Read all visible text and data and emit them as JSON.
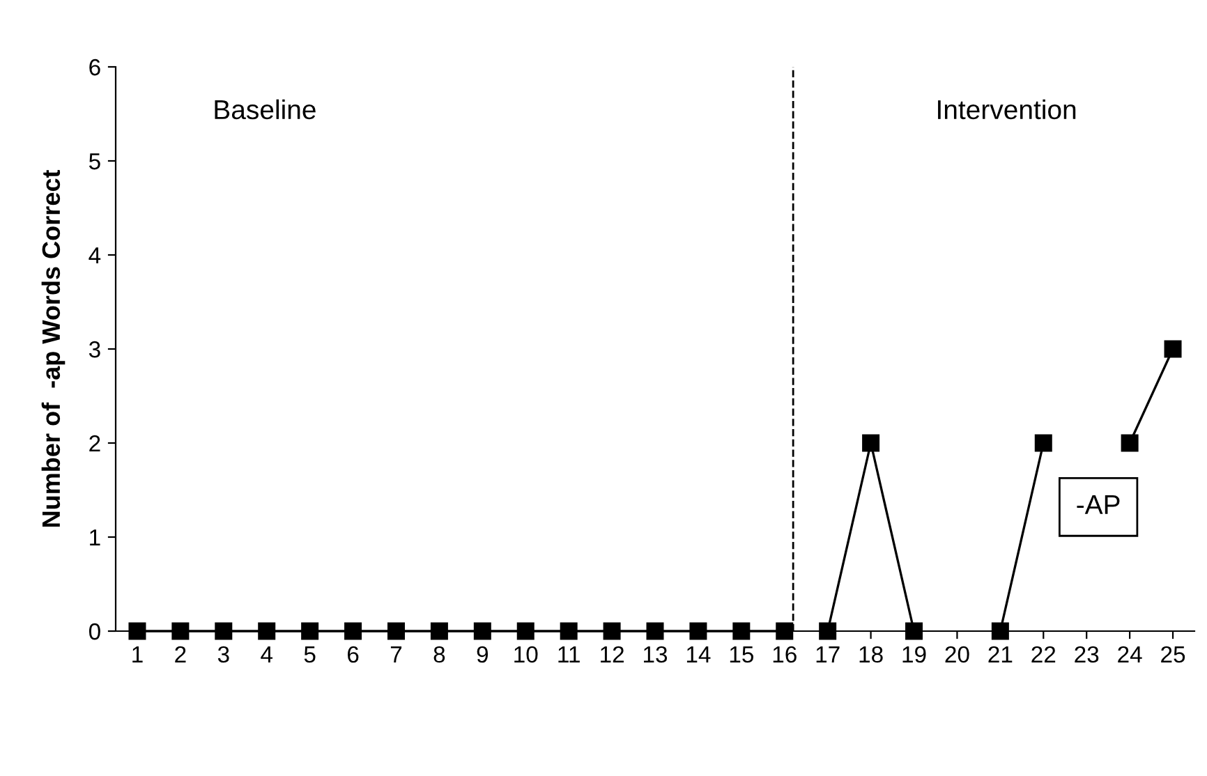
{
  "chart_data": {
    "type": "line",
    "ylabel": "Number of  -ap Words Correct",
    "x": [
      1,
      2,
      3,
      4,
      5,
      6,
      7,
      8,
      9,
      10,
      11,
      12,
      13,
      14,
      15,
      16,
      17,
      18,
      19,
      20,
      21,
      22,
      23,
      24,
      25
    ],
    "series": [
      {
        "color": "#000000",
        "values": [
          0,
          0,
          0,
          0,
          0,
          0,
          0,
          0,
          0,
          0,
          0,
          0,
          0,
          0,
          0,
          0,
          null,
          null,
          null,
          null,
          null,
          null,
          null,
          null,
          null
        ]
      },
      {
        "color": "#000000",
        "values": [
          null,
          null,
          null,
          null,
          null,
          null,
          null,
          null,
          null,
          null,
          null,
          null,
          null,
          null,
          null,
          null,
          0,
          2,
          0,
          null,
          0,
          2,
          null,
          2,
          3
        ]
      }
    ],
    "xlim": [
      0.5,
      25.5
    ],
    "xticks": [
      1,
      2,
      3,
      4,
      5,
      6,
      7,
      8,
      9,
      10,
      11,
      12,
      13,
      14,
      15,
      16,
      17,
      18,
      19,
      20,
      21,
      22,
      23,
      24,
      25
    ],
    "ylim": [
      0,
      6
    ],
    "yticks": [
      0,
      1,
      2,
      3,
      4,
      5,
      6
    ],
    "marker": "square",
    "line_style": "solid",
    "grid": false,
    "ref_lines": [
      {
        "axis": "x",
        "value": 16.2,
        "line_style": "dashed",
        "color": "#000000"
      }
    ],
    "annotations": [
      "Baseline",
      "Intervention",
      "-AP"
    ]
  }
}
